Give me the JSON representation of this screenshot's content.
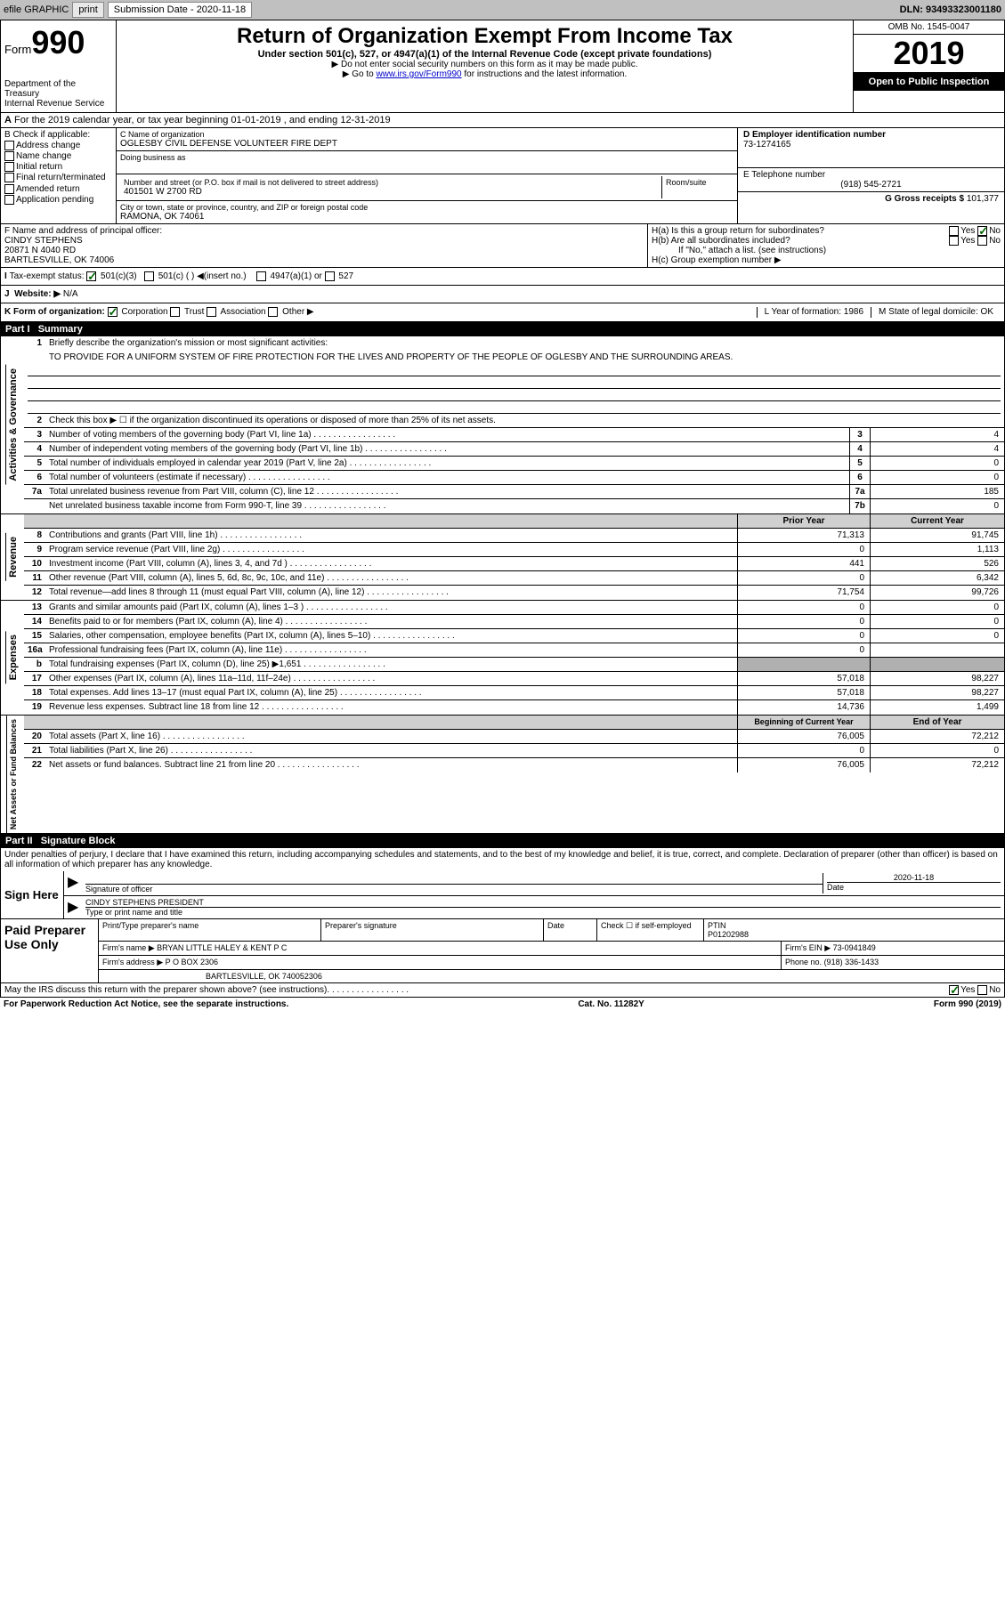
{
  "topbar": {
    "efile": "efile GRAPHIC",
    "print": "print",
    "sub_label": "Submission Date - 2020-11-18",
    "dln": "DLN: 93493323001180"
  },
  "header": {
    "form_label": "Form",
    "form_num": "990",
    "dept": "Department of the Treasury",
    "irs": "Internal Revenue Service",
    "title": "Return of Organization Exempt From Income Tax",
    "line1": "Under section 501(c), 527, or 4947(a)(1) of the Internal Revenue Code (except private foundations)",
    "line2": "▶ Do not enter social security numbers on this form as it may be made public.",
    "line3_pre": "▶ Go to ",
    "line3_link": "www.irs.gov/Form990",
    "line3_post": " for instructions and the latest information.",
    "omb": "OMB No. 1545-0047",
    "year": "2019",
    "open": "Open to Public Inspection"
  },
  "period": "For the 2019 calendar year, or tax year beginning 01-01-2019     , and ending 12-31-2019",
  "box_b": {
    "title": "B Check if applicable:",
    "opts": [
      "Address change",
      "Name change",
      "Initial return",
      "Final return/terminated",
      "Amended return",
      "Application pending"
    ]
  },
  "box_c": {
    "label": "C Name of organization",
    "name": "OGLESBY CIVIL DEFENSE VOLUNTEER FIRE DEPT",
    "dba_label": "Doing business as",
    "addr_label": "Number and street (or P.O. box if mail is not delivered to street address)",
    "addr": "401501 W 2700 RD",
    "room_label": "Room/suite",
    "city_label": "City or town, state or province, country, and ZIP or foreign postal code",
    "city": "RAMONA, OK  74061"
  },
  "box_d": {
    "label": "D Employer identification number",
    "val": "73-1274165"
  },
  "box_e": {
    "label": "E Telephone number",
    "val": "(918) 545-2721"
  },
  "box_g": {
    "label": "G Gross receipts $",
    "val": "101,377"
  },
  "box_f": {
    "label": "F  Name and address of principal officer:",
    "name": "CINDY STEPHENS",
    "addr1": "20871 N 4040 RD",
    "addr2": "BARTLESVILLE, OK  74006"
  },
  "box_h": {
    "a": "H(a)  Is this a group return for subordinates?",
    "b": "H(b)  Are all subordinates included?",
    "b_note": "If \"No,\" attach a list. (see instructions)",
    "c": "H(c)  Group exemption number ▶"
  },
  "tax_status": {
    "label": "Tax-exempt status:",
    "o1": "501(c)(3)",
    "o2": "501(c) (  ) ◀(insert no.)",
    "o3": "4947(a)(1) or",
    "o4": "527"
  },
  "website": {
    "j": "J",
    "label": "Website: ▶",
    "val": "N/A"
  },
  "row_k": {
    "k": "K Form of organization:",
    "corp": "Corporation",
    "trust": "Trust",
    "assoc": "Association",
    "other": "Other ▶",
    "l": "L Year of formation: 1986",
    "m": "M State of legal domicile: OK"
  },
  "part1": {
    "label": "Part I",
    "title": "Summary"
  },
  "mission": {
    "num": "1",
    "label": "Briefly describe the organization's mission or most significant activities:",
    "text": "TO PROVIDE FOR A UNIFORM SYSTEM OF FIRE PROTECTION FOR THE LIVES AND PROPERTY OF THE PEOPLE OF OGLESBY AND THE SURROUNDING AREAS."
  },
  "governance": {
    "label": "Activities & Governance",
    "rows": [
      {
        "n": "2",
        "t": "Check this box ▶ ☐  if the organization discontinued its operations or disposed of more than 25% of its net assets."
      },
      {
        "n": "3",
        "t": "Number of voting members of the governing body (Part VI, line 1a)",
        "box": "3",
        "v": "4"
      },
      {
        "n": "4",
        "t": "Number of independent voting members of the governing body (Part VI, line 1b)",
        "box": "4",
        "v": "4"
      },
      {
        "n": "5",
        "t": "Total number of individuals employed in calendar year 2019 (Part V, line 2a)",
        "box": "5",
        "v": "0"
      },
      {
        "n": "6",
        "t": "Total number of volunteers (estimate if necessary)",
        "box": "6",
        "v": "0"
      },
      {
        "n": "7a",
        "t": "Total unrelated business revenue from Part VIII, column (C), line 12",
        "box": "7a",
        "v": "185"
      },
      {
        "n": "",
        "t": "Net unrelated business taxable income from Form 990-T, line 39",
        "box": "7b",
        "v": "0"
      }
    ]
  },
  "col_headers": {
    "prior": "Prior Year",
    "current": "Current Year"
  },
  "revenue": {
    "label": "Revenue",
    "rows": [
      {
        "n": "8",
        "t": "Contributions and grants (Part VIII, line 1h)",
        "p": "71,313",
        "c": "91,745"
      },
      {
        "n": "9",
        "t": "Program service revenue (Part VIII, line 2g)",
        "p": "0",
        "c": "1,113"
      },
      {
        "n": "10",
        "t": "Investment income (Part VIII, column (A), lines 3, 4, and 7d )",
        "p": "441",
        "c": "526"
      },
      {
        "n": "11",
        "t": "Other revenue (Part VIII, column (A), lines 5, 6d, 8c, 9c, 10c, and 11e)",
        "p": "0",
        "c": "6,342"
      },
      {
        "n": "12",
        "t": "Total revenue—add lines 8 through 11 (must equal Part VIII, column (A), line 12)",
        "p": "71,754",
        "c": "99,726"
      }
    ]
  },
  "expenses": {
    "label": "Expenses",
    "rows": [
      {
        "n": "13",
        "t": "Grants and similar amounts paid (Part IX, column (A), lines 1–3 )",
        "p": "0",
        "c": "0"
      },
      {
        "n": "14",
        "t": "Benefits paid to or for members (Part IX, column (A), line 4)",
        "p": "0",
        "c": "0"
      },
      {
        "n": "15",
        "t": "Salaries, other compensation, employee benefits (Part IX, column (A), lines 5–10)",
        "p": "0",
        "c": "0"
      },
      {
        "n": "16a",
        "t": "Professional fundraising fees (Part IX, column (A), line 11e)",
        "p": "0",
        "c": ""
      },
      {
        "n": "b",
        "t": "Total fundraising expenses (Part IX, column (D), line 25) ▶1,651",
        "p": "",
        "c": "",
        "gray": true
      },
      {
        "n": "17",
        "t": "Other expenses (Part IX, column (A), lines 11a–11d, 11f–24e)",
        "p": "57,018",
        "c": "98,227"
      },
      {
        "n": "18",
        "t": "Total expenses. Add lines 13–17 (must equal Part IX, column (A), line 25)",
        "p": "57,018",
        "c": "98,227"
      },
      {
        "n": "19",
        "t": "Revenue less expenses. Subtract line 18 from line 12",
        "p": "14,736",
        "c": "1,499"
      }
    ]
  },
  "netassets": {
    "label": "Net Assets or Fund Balances",
    "col_headers": {
      "beg": "Beginning of Current Year",
      "end": "End of Year"
    },
    "rows": [
      {
        "n": "20",
        "t": "Total assets (Part X, line 16)",
        "p": "76,005",
        "c": "72,212"
      },
      {
        "n": "21",
        "t": "Total liabilities (Part X, line 26)",
        "p": "0",
        "c": "0"
      },
      {
        "n": "22",
        "t": "Net assets or fund balances. Subtract line 21 from line 20",
        "p": "76,005",
        "c": "72,212"
      }
    ]
  },
  "part2": {
    "label": "Part II",
    "title": "Signature Block"
  },
  "sig": {
    "perjury": "Under penalties of perjury, I declare that I have examined this return, including accompanying schedules and statements, and to the best of my knowledge and belief, it is true, correct, and complete. Declaration of preparer (other than officer) is based on all information of which preparer has any knowledge.",
    "sign_here": "Sign Here",
    "sig_officer": "Signature of officer",
    "date": "Date",
    "date_val": "2020-11-18",
    "name_title": "CINDY STEPHENS PRESIDENT",
    "name_label": "Type or print name and title"
  },
  "preparer": {
    "label": "Paid Preparer Use Only",
    "h1": "Print/Type preparer's name",
    "h2": "Preparer's signature",
    "h3": "Date",
    "h4": "Check ☐ if self-employed",
    "h5": "PTIN",
    "ptin": "P01202988",
    "firm_label": "Firm's name     ▶",
    "firm": "BRYAN LITTLE HALEY & KENT P C",
    "ein_label": "Firm's EIN ▶",
    "ein": "73-0941849",
    "addr_label": "Firm's address ▶",
    "addr1": "P O BOX 2306",
    "addr2": "BARTLESVILLE, OK  740052306",
    "phone_label": "Phone no.",
    "phone": "(918) 336-1433"
  },
  "discuss": "May the IRS discuss this return with the preparer shown above? (see instructions)",
  "footer": {
    "left": "For Paperwork Reduction Act Notice, see the separate instructions.",
    "mid": "Cat. No. 11282Y",
    "right": "Form 990 (2019)"
  }
}
